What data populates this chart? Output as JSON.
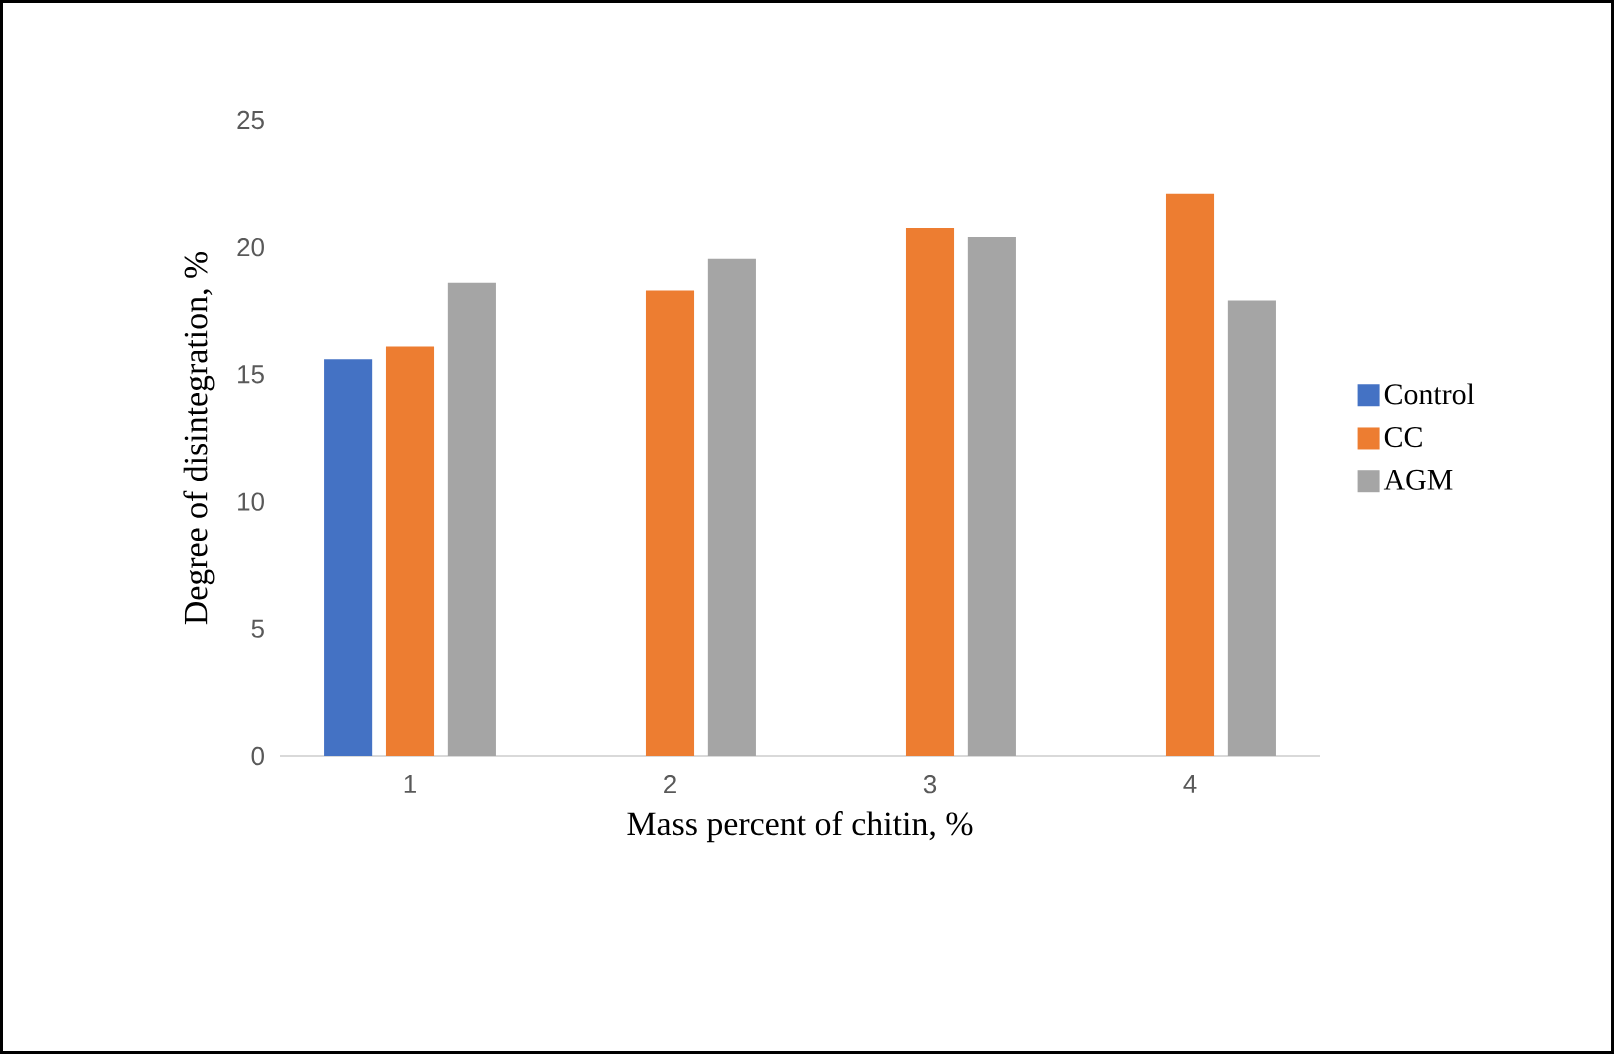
{
  "chart_data": {
    "type": "bar",
    "xlabel": "Mass percent of chitin, %",
    "ylabel": "Degree of disintegration, %",
    "categories": [
      "1",
      "2",
      "3",
      "4"
    ],
    "series": [
      {
        "name": "Control",
        "color": "#4472c4",
        "values": [
          15.6,
          null,
          null,
          null
        ]
      },
      {
        "name": "CC",
        "color": "#ed7d31",
        "values": [
          16.1,
          18.3,
          20.75,
          22.1
        ]
      },
      {
        "name": "AGM",
        "color": "#a5a5a5",
        "values": [
          18.6,
          19.55,
          20.4,
          17.9
        ]
      }
    ],
    "ylim": [
      0,
      25
    ],
    "yticks": [
      0,
      5,
      10,
      15,
      20,
      25
    ],
    "grid": false,
    "legend": "right"
  }
}
